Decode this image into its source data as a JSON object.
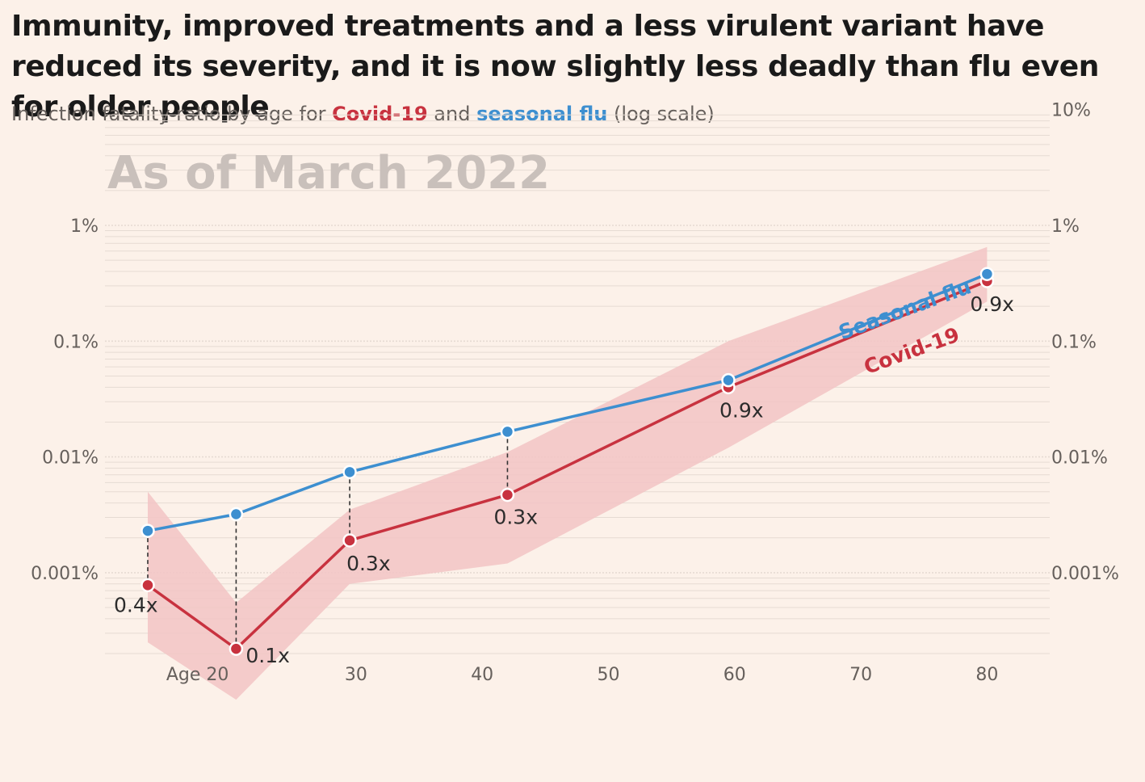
{
  "headline": "Immunity, improved treatments and a less virulent variant have reduced its severity, and it is now slightly less deadly than flu even for older people",
  "subtitle": {
    "prefix": "Infection fatality ratio by age for ",
    "covid": "Covid-19",
    "middle": " and ",
    "flu": "seasonal flu",
    "suffix": " (log scale)"
  },
  "colors": {
    "background": "#fcf1e9",
    "covid": "#c8323f",
    "flu": "#3d8fd0",
    "band": "#f2c4c4",
    "grid": "#e6dbd3"
  },
  "chart_data": {
    "type": "line",
    "title": "As of March 2022",
    "scale": "log",
    "x_ticks": [
      {
        "value": 20,
        "label": "Age 20"
      },
      {
        "value": 30,
        "label": "30"
      },
      {
        "value": 40,
        "label": "40"
      },
      {
        "value": 50,
        "label": "50"
      },
      {
        "value": 60,
        "label": "60"
      },
      {
        "value": 70,
        "label": "70"
      },
      {
        "value": 80,
        "label": "80"
      }
    ],
    "xlim": [
      12.5,
      86.3
    ],
    "ylim": [
      0.00015,
      10
    ],
    "y_ticks_left": [
      {
        "value": 1,
        "label": "1%"
      },
      {
        "value": 0.1,
        "label": "0.1%"
      },
      {
        "value": 0.01,
        "label": "0.01%"
      },
      {
        "value": 0.001,
        "label": "0.001%"
      }
    ],
    "y_ticks_right": [
      {
        "value": 10,
        "label": "10%"
      },
      {
        "value": 1,
        "label": "1%"
      },
      {
        "value": 0.1,
        "label": "0.1%"
      },
      {
        "value": 0.01,
        "label": "0.01%"
      },
      {
        "value": 0.001,
        "label": "0.001%"
      }
    ],
    "series": [
      {
        "name": "Seasonal flu",
        "color": "#3d8fd0",
        "x": [
          13.5,
          20.5,
          29.5,
          42.0,
          59.5,
          80.0
        ],
        "values": [
          0.0023,
          0.0032,
          0.0074,
          0.0165,
          0.046,
          0.38
        ]
      },
      {
        "name": "Covid-19",
        "color": "#c8323f",
        "x": [
          13.5,
          20.5,
          29.5,
          42.0,
          59.5,
          80.0
        ],
        "values": [
          0.00078,
          0.00022,
          0.0019,
          0.0047,
          0.04,
          0.33
        ]
      }
    ],
    "covid_range": {
      "x": [
        13.5,
        20.5,
        29.5,
        42.0,
        59.5,
        80.0
      ],
      "upper": [
        0.005,
        0.00055,
        0.0035,
        0.011,
        0.1,
        0.65
      ],
      "lower": [
        0.00025,
        8e-05,
        0.0008,
        0.0012,
        0.012,
        0.22
      ]
    },
    "ratios": [
      "0.4x",
      "0.1x",
      "0.3x",
      "0.3x",
      "0.9x",
      "0.9x"
    ],
    "line_labels": {
      "flu": "Seasonal flu",
      "covid": "Covid-19"
    }
  }
}
